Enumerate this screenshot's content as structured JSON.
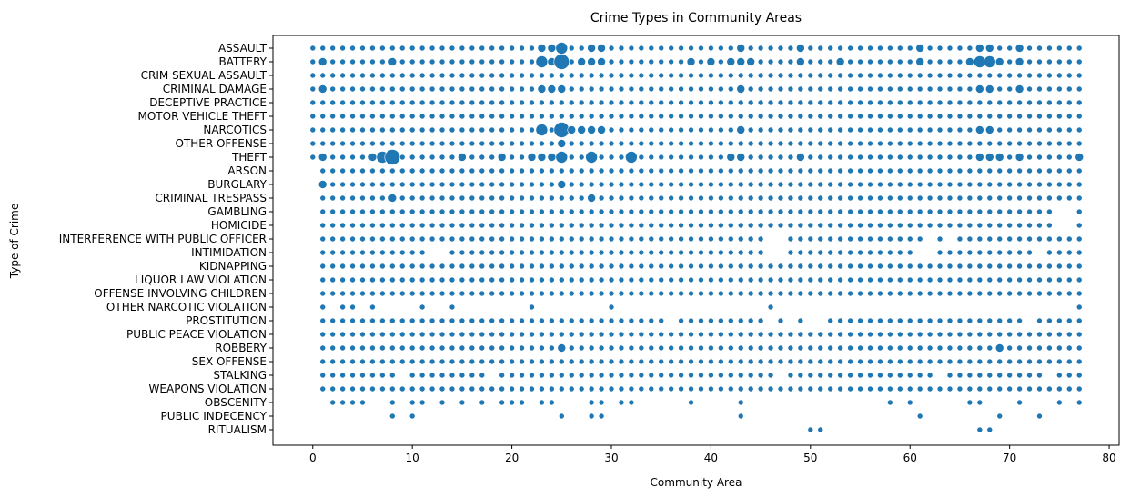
{
  "chart_data": {
    "type": "scatter",
    "title": "Crime Types in Community Areas",
    "xlabel": "Community Area",
    "ylabel": "Type of Crime",
    "xlim": [
      -4,
      81
    ],
    "x_ticks": [
      0,
      10,
      20,
      30,
      40,
      50,
      60,
      70,
      80
    ],
    "grid": false,
    "legend": "none",
    "marker_color": "#1f77b4",
    "categories": [
      "ASSAULT",
      "BATTERY",
      "CRIM SEXUAL ASSAULT",
      "CRIMINAL DAMAGE",
      "DECEPTIVE PRACTICE",
      "MOTOR VEHICLE THEFT",
      "NARCOTICS",
      "OTHER OFFENSE",
      "THEFT",
      "ARSON",
      "BURGLARY",
      "CRIMINAL TRESPASS",
      "GAMBLING",
      "HOMICIDE",
      "INTERFERENCE WITH PUBLIC OFFICER",
      "INTIMIDATION",
      "KIDNAPPING",
      "LIQUOR LAW VIOLATION",
      "OFFENSE INVOLVING CHILDREN",
      "OTHER NARCOTIC VIOLATION",
      "PROSTITUTION",
      "PUBLIC PEACE VIOLATION",
      "ROBBERY",
      "SEX OFFENSE",
      "STALKING",
      "WEAPONS VIOLATION",
      "OBSCENITY",
      "PUBLIC INDECENCY",
      "RITUALISM"
    ],
    "points": {
      "ASSAULT": {
        "start": 0,
        "end": 77,
        "big": [
          [
            25,
            2
          ],
          [
            23,
            1
          ],
          [
            24,
            1
          ],
          [
            28,
            1
          ],
          [
            29,
            1
          ],
          [
            43,
            1
          ],
          [
            49,
            1
          ],
          [
            61,
            1
          ],
          [
            67,
            1
          ],
          [
            68,
            1
          ],
          [
            71,
            1
          ]
        ]
      },
      "BATTERY": {
        "start": 0,
        "end": 77,
        "big": [
          [
            25,
            3
          ],
          [
            23,
            2
          ],
          [
            8,
            1
          ],
          [
            1,
            1
          ],
          [
            24,
            1
          ],
          [
            27,
            1
          ],
          [
            28,
            1
          ],
          [
            29,
            1
          ],
          [
            43,
            1
          ],
          [
            49,
            1
          ],
          [
            67,
            2
          ],
          [
            68,
            2
          ],
          [
            69,
            1
          ],
          [
            71,
            1
          ],
          [
            66,
            1
          ],
          [
            61,
            1
          ],
          [
            53,
            1
          ],
          [
            38,
            1
          ],
          [
            40,
            1
          ],
          [
            42,
            1
          ],
          [
            44,
            1
          ]
        ]
      },
      "CRIM SEXUAL ASSAULT": {
        "start": 0,
        "end": 77,
        "big": []
      },
      "CRIMINAL DAMAGE": {
        "start": 0,
        "end": 77,
        "big": [
          [
            25,
            1
          ],
          [
            23,
            1
          ],
          [
            24,
            1
          ],
          [
            1,
            1
          ],
          [
            43,
            1
          ],
          [
            67,
            1
          ],
          [
            68,
            1
          ],
          [
            71,
            1
          ]
        ]
      },
      "DECEPTIVE PRACTICE": {
        "start": 0,
        "end": 77,
        "big": []
      },
      "MOTOR VEHICLE THEFT": {
        "start": 0,
        "end": 77,
        "big": []
      },
      "NARCOTICS": {
        "start": 0,
        "end": 77,
        "big": [
          [
            25,
            3
          ],
          [
            23,
            2
          ],
          [
            29,
            1
          ],
          [
            27,
            1
          ],
          [
            28,
            1
          ],
          [
            26,
            1
          ],
          [
            43,
            1
          ],
          [
            67,
            1
          ],
          [
            68,
            1
          ]
        ]
      },
      "OTHER OFFENSE": {
        "start": 0,
        "end": 77,
        "big": [
          [
            25,
            1
          ]
        ]
      },
      "THEFT": {
        "start": 0,
        "end": 77,
        "big": [
          [
            8,
            3
          ],
          [
            7,
            2
          ],
          [
            6,
            1
          ],
          [
            32,
            2
          ],
          [
            28,
            2
          ],
          [
            25,
            2
          ],
          [
            24,
            1
          ],
          [
            23,
            1
          ],
          [
            22,
            1
          ],
          [
            43,
            1
          ],
          [
            42,
            1
          ],
          [
            1,
            1
          ],
          [
            15,
            1
          ],
          [
            19,
            1
          ],
          [
            49,
            1
          ],
          [
            71,
            1
          ],
          [
            69,
            1
          ],
          [
            67,
            1
          ],
          [
            68,
            1
          ],
          [
            77,
            1
          ]
        ]
      },
      "ARSON": {
        "start": 1,
        "end": 77,
        "big": []
      },
      "BURGLARY": {
        "start": 1,
        "end": 77,
        "big": [
          [
            1,
            1
          ],
          [
            25,
            1
          ]
        ]
      },
      "CRIMINAL TRESPASS": {
        "start": 1,
        "end": 77,
        "big": [
          [
            8,
            1
          ],
          [
            28,
            1
          ]
        ]
      },
      "GAMBLING": {
        "start": 1,
        "end": 77,
        "gaps": [
          75,
          76
        ]
      },
      "HOMICIDE": {
        "start": 1,
        "end": 77,
        "gaps": [
          75,
          76
        ]
      },
      "INTERFERENCE WITH PUBLIC OFFICER": {
        "start": 1,
        "end": 77,
        "gaps": [
          46,
          47,
          62,
          64
        ]
      },
      "INTIMIDATION": {
        "start": 1,
        "end": 77,
        "gaps": [
          12,
          13,
          46,
          47,
          61,
          62,
          73
        ]
      },
      "KIDNAPPING": {
        "start": 1,
        "end": 77,
        "big": []
      },
      "LIQUOR LAW VIOLATION": {
        "start": 1,
        "end": 77,
        "big": []
      },
      "OFFENSE INVOLVING CHILDREN": {
        "start": 1,
        "end": 77,
        "big": []
      },
      "OTHER NARCOTIC VIOLATION": {
        "list": [
          1,
          3,
          4,
          6,
          11,
          14,
          22,
          30,
          46,
          77
        ]
      },
      "PROSTITUTION": {
        "start": 1,
        "end": 77,
        "gaps": [
          36,
          46,
          48,
          50,
          51,
          72
        ]
      },
      "PUBLIC PEACE VIOLATION": {
        "start": 1,
        "end": 77,
        "big": []
      },
      "ROBBERY": {
        "start": 1,
        "end": 77,
        "big": [
          [
            25,
            1
          ],
          [
            69,
            1
          ]
        ]
      },
      "SEX OFFENSE": {
        "start": 1,
        "end": 77,
        "big": []
      },
      "STALKING": {
        "start": 1,
        "end": 77,
        "gaps": [
          9,
          18,
          47,
          63,
          74
        ]
      },
      "WEAPONS VIOLATION": {
        "start": 1,
        "end": 77,
        "big": []
      },
      "OBSCENITY": {
        "list": [
          2,
          3,
          4,
          5,
          8,
          10,
          11,
          13,
          15,
          17,
          19,
          20,
          21,
          23,
          24,
          28,
          29,
          31,
          32,
          38,
          43,
          58,
          60,
          66,
          67,
          71,
          75,
          77
        ]
      },
      "PUBLIC INDECENCY": {
        "list": [
          8,
          10,
          25,
          28,
          29,
          43,
          61,
          69,
          73
        ]
      },
      "RITUALISM": {
        "list": [
          50,
          51,
          67,
          68
        ]
      }
    }
  }
}
